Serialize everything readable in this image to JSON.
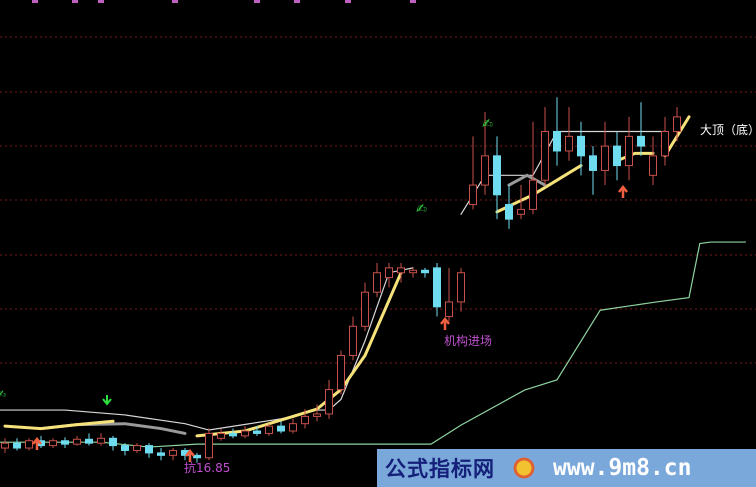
{
  "chart_data": {
    "type": "candlestick",
    "title": "",
    "xlabel": "",
    "ylabel": "",
    "grid": true,
    "colors": {
      "up": "#c8504a",
      "down": "#6fdcef",
      "ma_yellow": "#f6e27a",
      "ma_gray": "#9a9a9a",
      "support_green": "#8fd4a0",
      "resistance_white": "#d8d8d8",
      "grid": "#7a1a1a"
    },
    "candles": [
      [
        8,
        9,
        10,
        7
      ],
      [
        9,
        8,
        10,
        7.5
      ],
      [
        8,
        9.5,
        10,
        7.5
      ],
      [
        9.5,
        8.5,
        10.5,
        8
      ],
      [
        8.5,
        9.5,
        10,
        8
      ],
      [
        9.5,
        8.8,
        10.2,
        8
      ],
      [
        8.8,
        9.8,
        10.5,
        8.5
      ],
      [
        9.8,
        9,
        11,
        8.5
      ],
      [
        9,
        10,
        11,
        8.5
      ],
      [
        10,
        8.5,
        10.5,
        7.5
      ],
      [
        8.5,
        7.5,
        9,
        6.5
      ],
      [
        7.5,
        8.5,
        9,
        7
      ],
      [
        8.5,
        7,
        9,
        6
      ],
      [
        7,
        6.5,
        8,
        5.5
      ],
      [
        6.5,
        7.5,
        8,
        5.5
      ],
      [
        7.5,
        6.5,
        8,
        5.5
      ],
      [
        6.5,
        6,
        7,
        5
      ],
      [
        6,
        11,
        12,
        5.5
      ],
      [
        10,
        11,
        12,
        9.5
      ],
      [
        11,
        10.5,
        12,
        10
      ],
      [
        10.5,
        11.5,
        12.5,
        10
      ],
      [
        11.5,
        11,
        12.5,
        10.5
      ],
      [
        11,
        12.5,
        13,
        10.5
      ],
      [
        12.5,
        11.5,
        13.5,
        11
      ],
      [
        11.5,
        13,
        14,
        11
      ],
      [
        13,
        14.5,
        16,
        12
      ],
      [
        14.5,
        15,
        17,
        13.5
      ],
      [
        15,
        20,
        22,
        14
      ],
      [
        20,
        27,
        28,
        19
      ],
      [
        27,
        33,
        35,
        26
      ],
      [
        33,
        40,
        42,
        32
      ],
      [
        40,
        44,
        46,
        39
      ],
      [
        43,
        45,
        46,
        41
      ],
      [
        44,
        45,
        46,
        42
      ],
      [
        44,
        44.5,
        45,
        43
      ],
      [
        44.5,
        44,
        45,
        43
      ],
      [
        45,
        37,
        46,
        35
      ],
      [
        35,
        38,
        45,
        34
      ],
      [
        38,
        44,
        45,
        36
      ],
      [
        58,
        62,
        72,
        57
      ],
      [
        62,
        68,
        77,
        60
      ],
      [
        68,
        60,
        72,
        55
      ],
      [
        58,
        55,
        62,
        53
      ],
      [
        56,
        57,
        62,
        55
      ],
      [
        57,
        63,
        75,
        56
      ],
      [
        63,
        73,
        78,
        62
      ],
      [
        73,
        69,
        80,
        66
      ],
      [
        69,
        72,
        78,
        67
      ],
      [
        72,
        68,
        75,
        64
      ],
      [
        68,
        65,
        70,
        60
      ],
      [
        65,
        70,
        75,
        62
      ],
      [
        70,
        66,
        73,
        63
      ],
      [
        66,
        72,
        76,
        63
      ],
      [
        72,
        70,
        79,
        68
      ],
      [
        64,
        68,
        72,
        62
      ],
      [
        68,
        73,
        76,
        66
      ],
      [
        73,
        76,
        78,
        71
      ]
    ],
    "series": [
      {
        "kind": "support",
        "points": [
          [
            -0.4,
            9.2
          ],
          [
            8,
            9.2
          ],
          [
            12,
            8.2
          ],
          [
            16,
            8.8
          ],
          [
            35.5,
            8.8
          ],
          [
            38,
            12.7
          ],
          [
            43.3,
            19.9
          ],
          [
            46,
            22
          ],
          [
            49.6,
            36.3
          ],
          [
            54,
            37.9
          ],
          [
            57,
            38.9
          ],
          [
            57.9,
            50
          ],
          [
            58.8,
            50.3
          ],
          [
            61.7,
            50.3
          ]
        ]
      },
      {
        "kind": "resistance",
        "points": [
          [
            -0.4,
            15.8
          ],
          [
            5,
            15.8
          ],
          [
            10,
            14.8
          ],
          [
            15,
            13
          ],
          [
            17,
            11.7
          ],
          [
            23,
            14
          ],
          [
            26,
            15.8
          ],
          [
            27,
            15.8
          ],
          [
            28,
            18
          ],
          [
            30,
            30
          ],
          [
            32,
            44
          ],
          [
            34,
            45
          ]
        ]
      },
      {
        "kind": "resistance",
        "points": [
          [
            38,
            56
          ],
          [
            40,
            64
          ],
          [
            44,
            64
          ],
          [
            46,
            73
          ],
          [
            55,
            73
          ]
        ]
      },
      {
        "kind": "ma_gray",
        "points": [
          [
            3,
            12
          ],
          [
            6,
            12.8
          ],
          [
            10,
            13
          ],
          [
            13,
            12
          ],
          [
            15,
            11
          ]
        ]
      },
      {
        "kind": "ma_yellow",
        "points": [
          [
            0,
            12.5
          ],
          [
            3,
            12
          ],
          [
            6,
            12.8
          ],
          [
            9,
            13.5
          ]
        ]
      },
      {
        "kind": "ma_yellow",
        "points": [
          [
            16,
            10.5
          ],
          [
            20,
            11.5
          ],
          [
            22,
            13
          ],
          [
            24,
            14.5
          ],
          [
            26,
            16
          ],
          [
            28,
            20
          ],
          [
            30,
            27
          ],
          [
            33,
            44
          ]
        ]
      },
      {
        "kind": "ma_yellow",
        "points": [
          [
            41,
            56.5
          ],
          [
            44,
            60
          ],
          [
            46,
            63
          ],
          [
            48,
            66
          ]
        ]
      },
      {
        "kind": "ma_gray",
        "points": [
          [
            42,
            62
          ],
          [
            43.5,
            64
          ],
          [
            45,
            62
          ]
        ]
      },
      {
        "kind": "ma_yellow",
        "points": [
          [
            51,
            67
          ],
          [
            52.5,
            68.5
          ],
          [
            54,
            68.5
          ]
        ]
      },
      {
        "kind": "ma_yellow",
        "points": [
          [
            55,
            68
          ],
          [
            57,
            76
          ]
        ]
      }
    ],
    "annotations": [
      {
        "text": "机构进场",
        "color": "#c050d0"
      },
      {
        "text": "抗16.85",
        "color": "#c050d0"
      },
      {
        "text": "大顶（底）",
        "color": "#ffffff"
      }
    ]
  },
  "watermark": {
    "site_name": "公式指标网",
    "url": "www.9m8.cn"
  }
}
